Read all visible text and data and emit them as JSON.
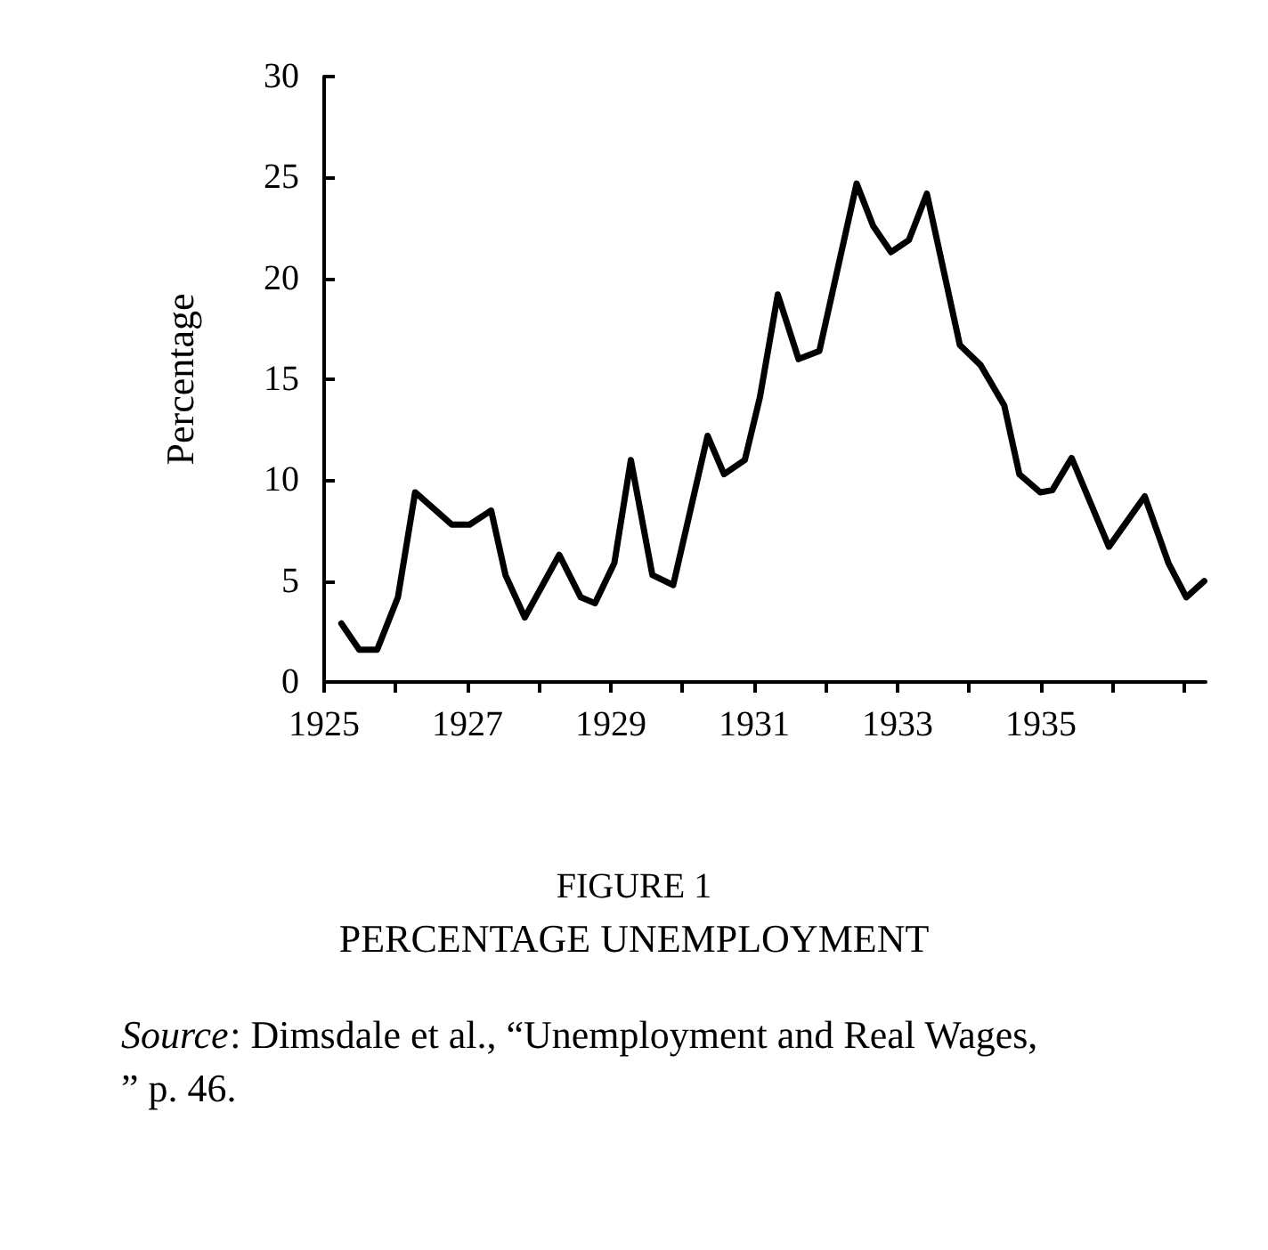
{
  "chart_data": {
    "type": "line",
    "title": "FIGURE 1",
    "subtitle": "PERCENTAGE UNEMPLOYMENT",
    "ylabel": "Percentage",
    "annotations": [
      "Source: Dimsdale et al., “Unemployment and Real Wages,” p. 46."
    ],
    "x": [
      1925.24,
      1925.49,
      1925.74,
      1926.03,
      1926.27,
      1926.78,
      1927.03,
      1927.33,
      1927.53,
      1927.8,
      1928.28,
      1928.58,
      1928.78,
      1929.05,
      1929.28,
      1929.58,
      1929.87,
      1930.35,
      1930.58,
      1930.87,
      1931.08,
      1931.33,
      1931.62,
      1931.91,
      1932.43,
      1932.66,
      1932.91,
      1933.16,
      1933.41,
      1933.87,
      1934.16,
      1934.49,
      1934.7,
      1934.99,
      1935.16,
      1935.43,
      1935.95,
      1936.45,
      1936.78,
      1937.03,
      1937.28
    ],
    "series": [
      {
        "color": "#000000",
        "values": [
          2.9,
          1.6,
          1.6,
          4.2,
          9.4,
          7.8,
          7.8,
          8.5,
          5.3,
          3.2,
          6.3,
          4.2,
          3.9,
          5.9,
          11.0,
          5.3,
          4.8,
          12.2,
          10.3,
          11.0,
          14.1,
          19.2,
          16.0,
          16.4,
          24.7,
          22.6,
          21.3,
          21.9,
          24.2,
          16.7,
          15.7,
          13.7,
          10.3,
          9.4,
          9.5,
          11.1,
          6.7,
          9.2,
          5.9,
          4.2,
          5.0
        ]
      }
    ],
    "xlim": [
      1925,
      1937.3
    ],
    "xticks": [
      1925,
      {
        "value": 1926,
        "label": null
      },
      1927,
      {
        "value": 1928,
        "label": null
      },
      1929,
      {
        "value": 1930,
        "label": null
      },
      1931,
      {
        "value": 1932,
        "label": null
      },
      1933,
      {
        "value": 1934,
        "label": null
      },
      1935,
      {
        "value": 1936,
        "label": null
      },
      {
        "value": 1937,
        "label": null
      }
    ],
    "ylim": [
      0,
      30
    ],
    "yticks": [
      0,
      5,
      10,
      15,
      20,
      25,
      30
    ],
    "grid": false,
    "marker": "none",
    "line_style": "solid"
  }
}
